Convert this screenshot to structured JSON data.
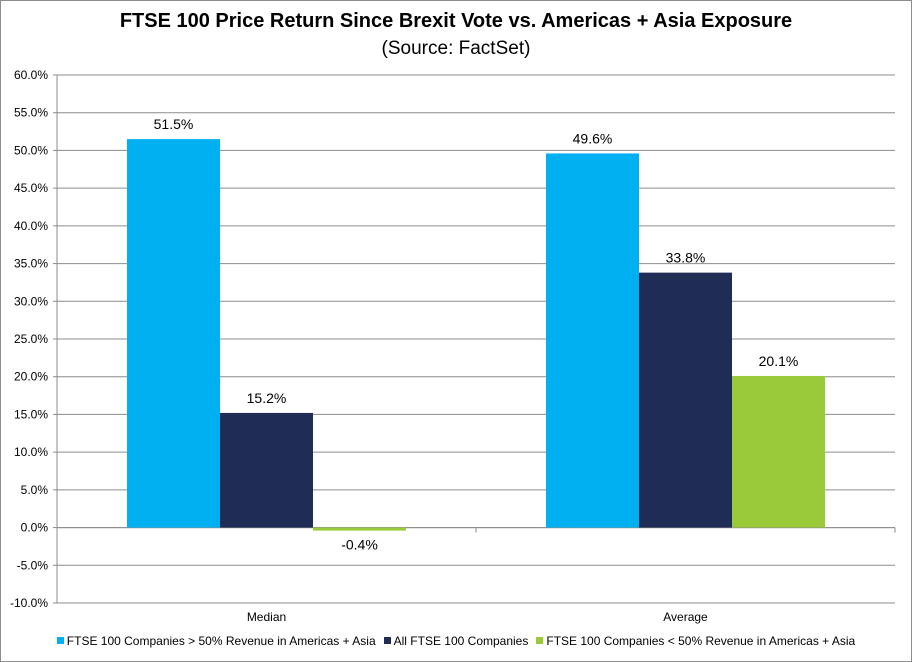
{
  "chart_data": {
    "type": "bar",
    "title": "FTSE 100 Price Return Since Brexit Vote vs. Americas + Asia Exposure",
    "subtitle": "(Source: FactSet)",
    "categories": [
      "Median",
      "Average"
    ],
    "series": [
      {
        "name": "FTSE 100 Companies > 50% Revenue in Americas + Asia",
        "color": "#00b0f0",
        "values": [
          51.5,
          49.6
        ],
        "labels": [
          "51.5%",
          "49.6%"
        ]
      },
      {
        "name": "All FTSE 100 Companies",
        "color": "#1f2d56",
        "values": [
          15.2,
          33.8
        ],
        "labels": [
          "15.2%",
          "33.8%"
        ]
      },
      {
        "name": "FTSE 100 Companies < 50% Revenue in Americas + Asia",
        "color": "#9ac93a",
        "values": [
          -0.4,
          20.1
        ],
        "labels": [
          "-0.4%",
          "20.1%"
        ]
      }
    ],
    "ylim": [
      -10,
      60
    ],
    "ytick_step": 5,
    "ytick_labels": [
      "60.0%",
      "55.0%",
      "50.0%",
      "45.0%",
      "40.0%",
      "35.0%",
      "30.0%",
      "25.0%",
      "20.0%",
      "15.0%",
      "10.0%",
      "5.0%",
      "0.0%",
      "-5.0%",
      "-10.0%"
    ],
    "grid": true,
    "legend_position": "bottom",
    "xlabel": "",
    "ylabel": ""
  }
}
